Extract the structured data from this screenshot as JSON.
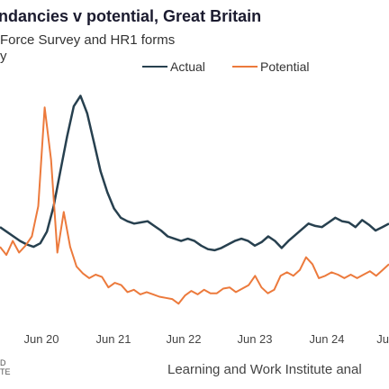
{
  "chart_data": {
    "type": "line",
    "title": "ndancies v potential, Great Britain",
    "subtitle": "Force Survey and HR1 forms",
    "note": "y",
    "source": "Learning and Work Institute anal",
    "footer_left": [
      "D",
      "TE"
    ],
    "x_ticks": [
      "Jun 20",
      "Jun 21",
      "Jun 22",
      "Jun 23",
      "Jun 24",
      "Ju"
    ],
    "grid": false,
    "legend_position": "top-right",
    "colors": {
      "actual": "#27404f",
      "potential": "#ec7a3c"
    },
    "series": [
      {
        "name": "Actual",
        "values": [
          92,
          88,
          84,
          80,
          77,
          75,
          78,
          88,
          110,
          140,
          170,
          196,
          205,
          190,
          165,
          140,
          122,
          108,
          100,
          97,
          95,
          96,
          97,
          93,
          89,
          84,
          82,
          80,
          82,
          80,
          76,
          73,
          72,
          74,
          77,
          80,
          82,
          80,
          76,
          79,
          84,
          80,
          74,
          80,
          85,
          90,
          95,
          93,
          92,
          96,
          100,
          97,
          96,
          92,
          98,
          94,
          89,
          92,
          95
        ]
      },
      {
        "name": "Potential",
        "values": [
          75,
          68,
          80,
          70,
          76,
          84,
          110,
          195,
          150,
          70,
          105,
          75,
          58,
          52,
          48,
          51,
          49,
          40,
          44,
          42,
          36,
          38,
          34,
          36,
          34,
          32,
          31,
          30,
          26,
          33,
          37,
          34,
          38,
          35,
          35,
          39,
          40,
          36,
          39,
          42,
          50,
          40,
          35,
          38,
          50,
          53,
          50,
          55,
          66,
          60,
          48,
          50,
          53,
          51,
          48,
          51,
          48,
          51,
          54,
          50,
          55,
          60
        ]
      }
    ]
  }
}
